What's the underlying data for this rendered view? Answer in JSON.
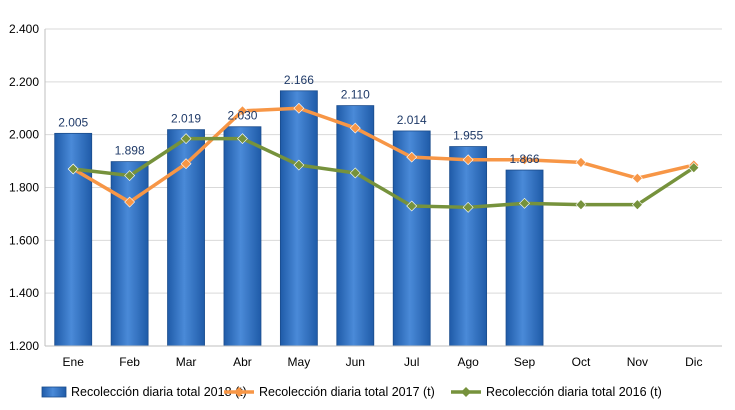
{
  "chart_data": {
    "type": "bar",
    "categories": [
      "Ene",
      "Feb",
      "Mar",
      "Abr",
      "May",
      "Jun",
      "Jul",
      "Ago",
      "Sep",
      "Oct",
      "Nov",
      "Dic"
    ],
    "ylim": [
      1200,
      2400
    ],
    "yticks": [
      1200,
      1400,
      1600,
      1800,
      2000,
      2200,
      2400
    ],
    "ytick_labels": [
      "1.200",
      "1.400",
      "1.600",
      "1.800",
      "2.000",
      "2.200",
      "2.400"
    ],
    "grid": "horizontal",
    "legend_position": "bottom",
    "series": [
      {
        "name": "Recolección diaria total 2018 (t)",
        "type": "bar",
        "color": "#2E6FC0",
        "values": [
          2005,
          1898,
          2019,
          2030,
          2166,
          2110,
          2014,
          1955,
          1866,
          null,
          null,
          null
        ],
        "data_labels": [
          "2.005",
          "1.898",
          "2.019",
          "2.030",
          "2.166",
          "2.110",
          "2.014",
          "1.955",
          "1.866",
          null,
          null,
          null
        ]
      },
      {
        "name": "Recolección diaria total 2017 (t)",
        "type": "line",
        "color": "#F79646",
        "values": [
          1870,
          1745,
          1890,
          2090,
          2100,
          2025,
          1915,
          1905,
          1905,
          1895,
          1835,
          1885
        ]
      },
      {
        "name": "Recolección diaria total 2016 (t)",
        "type": "line",
        "color": "#76923C",
        "values": [
          1870,
          1845,
          1985,
          1985,
          1885,
          1855,
          1730,
          1725,
          1740,
          1735,
          1735,
          1875
        ]
      }
    ]
  }
}
